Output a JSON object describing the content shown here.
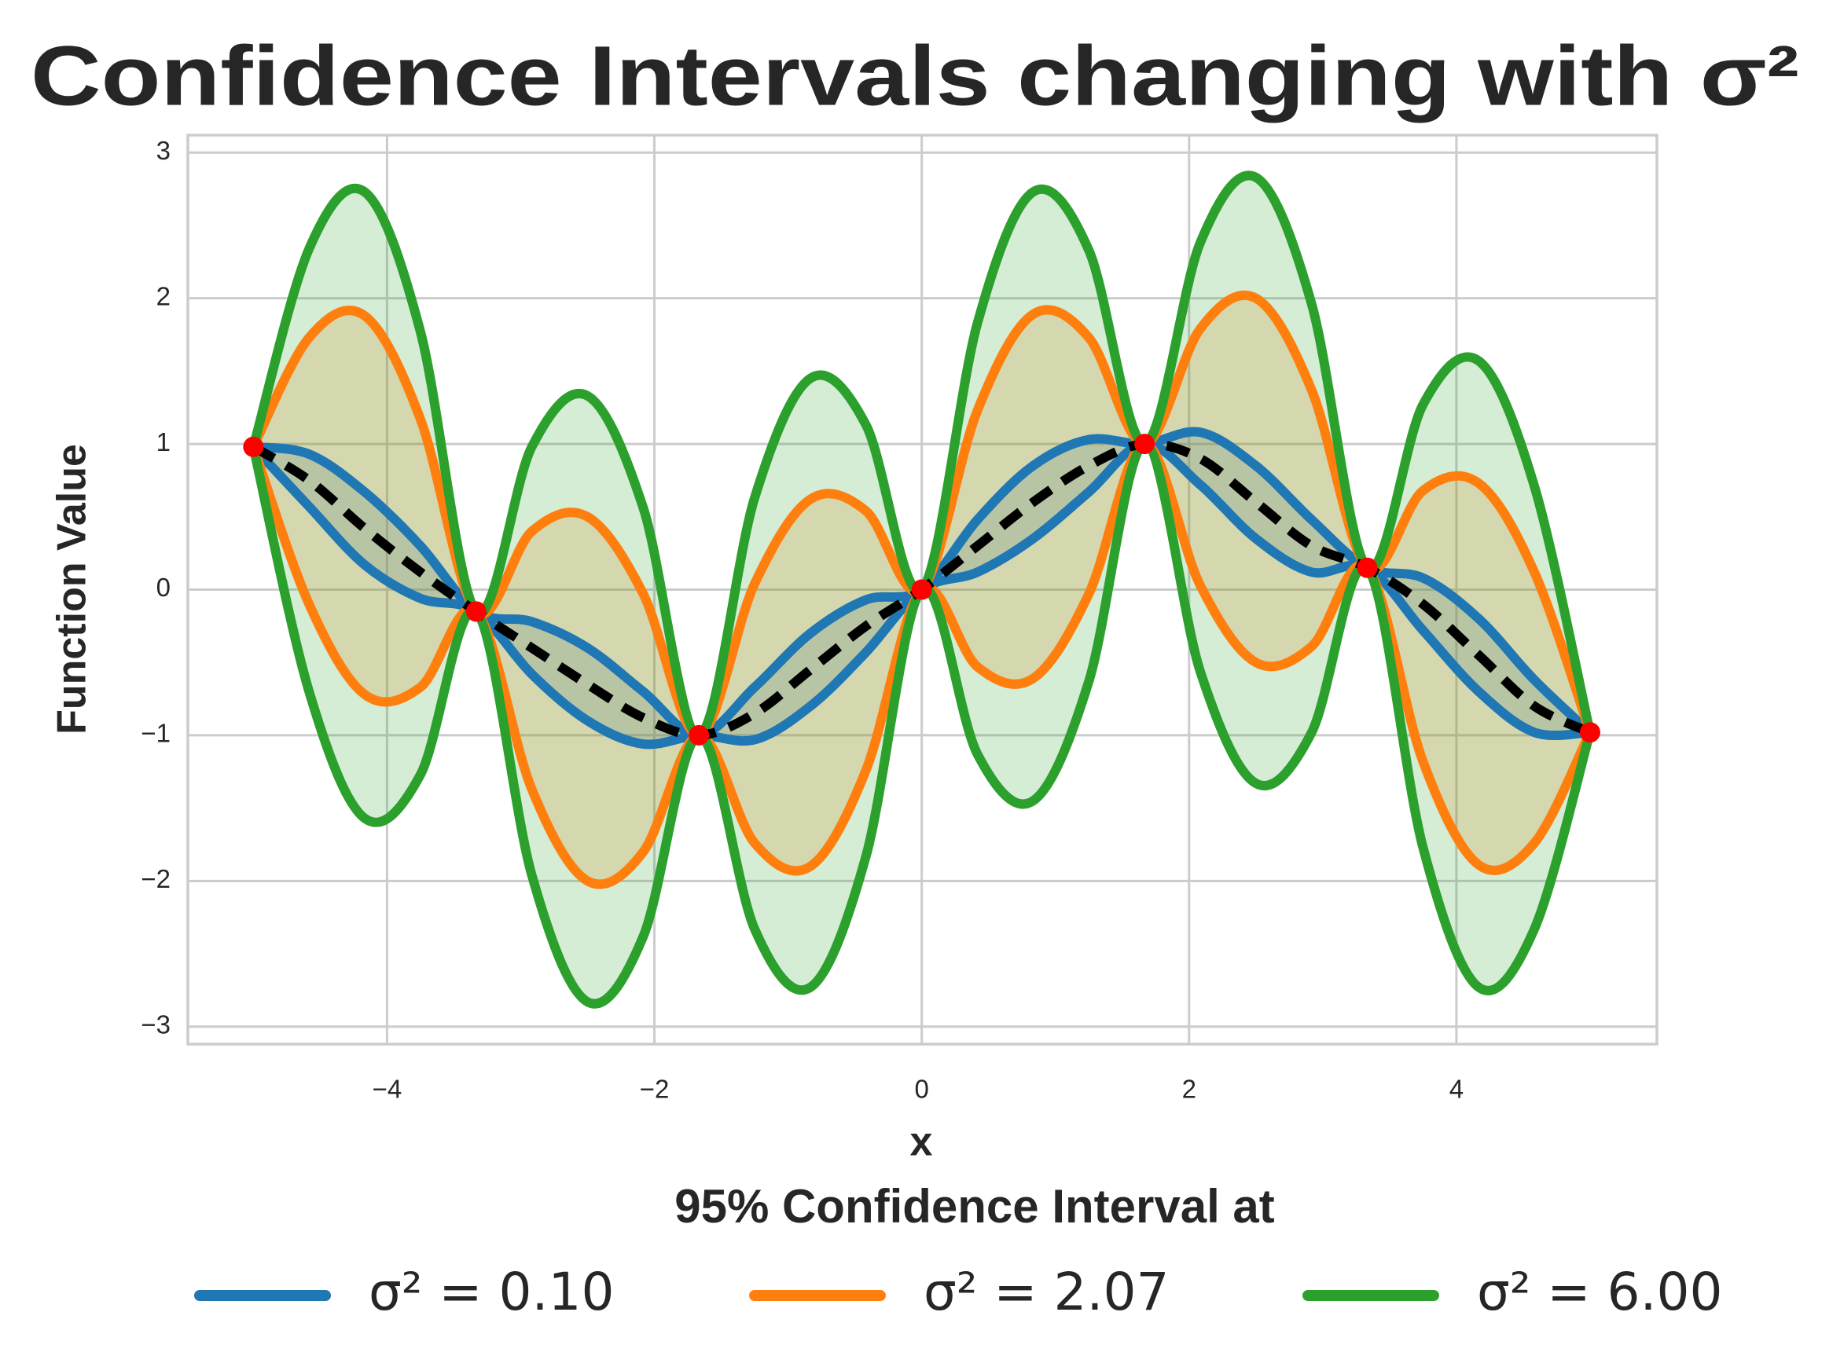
{
  "chart_data": {
    "type": "band-line",
    "title": "Confidence Intervals changing with σ²",
    "xlabel": "x",
    "ylabel": "Function Value",
    "legend_title": "95% Confidence Interval at",
    "grid": true,
    "legend": "bottom",
    "xlim": [
      -5.49,
      5.5
    ],
    "ylim": [
      -3.12,
      3.12
    ],
    "xticks": [
      {
        "value": -4,
        "label": "−4"
      },
      {
        "value": -2,
        "label": "−2"
      },
      0,
      2,
      4
    ],
    "yticks": [
      {
        "value": -3,
        "label": "−3"
      },
      {
        "value": -2,
        "label": "−2"
      },
      {
        "value": -1,
        "label": "−1"
      },
      0,
      1,
      2,
      3
    ],
    "x": [
      -5,
      -4.583,
      -4.167,
      -3.75,
      -3.333,
      -2.917,
      -2.5,
      -2.083,
      -1.667,
      -1.25,
      -0.833,
      -0.417,
      0,
      0.417,
      0.833,
      1.25,
      1.667,
      2.083,
      2.5,
      2.917,
      3.333,
      3.75,
      4.167,
      4.583,
      5
    ],
    "mean": {
      "color": "#000000",
      "values": [
        0.98,
        0.75,
        0.42,
        0.12,
        -0.15,
        -0.4,
        -0.65,
        -0.88,
        -1.0,
        -0.85,
        -0.55,
        -0.25,
        0,
        0.3,
        0.6,
        0.85,
        1.0,
        0.9,
        0.6,
        0.3,
        0.15,
        -0.1,
        -0.45,
        -0.8,
        -0.98
      ]
    },
    "bands": [
      {
        "name": "σ² = 0.10",
        "color": "#1f77b4",
        "upper": [
          0.98,
          0.93,
          0.67,
          0.3,
          -0.15,
          -0.22,
          -0.4,
          -0.7,
          -1.0,
          -0.67,
          -0.3,
          -0.07,
          0,
          0.48,
          0.85,
          1.03,
          1.0,
          1.08,
          0.85,
          0.48,
          0.15,
          0.08,
          -0.2,
          -0.62,
          -0.98
        ],
        "lower": [
          0.98,
          0.57,
          0.17,
          -0.06,
          -0.15,
          -0.58,
          -0.9,
          -1.06,
          -1.0,
          -1.03,
          -0.8,
          -0.43,
          0,
          0.12,
          0.35,
          0.67,
          1.0,
          0.72,
          0.35,
          0.12,
          0.15,
          -0.28,
          -0.7,
          -0.98,
          -0.98
        ]
      },
      {
        "name": "σ² = 2.07",
        "color": "#ff7f0e",
        "upper": [
          0.98,
          1.73,
          1.88,
          1.17,
          -0.15,
          0.4,
          0.5,
          -0.03,
          -1.0,
          0.04,
          0.62,
          0.54,
          0,
          1.23,
          1.89,
          1.73,
          1.0,
          1.79,
          2.0,
          1.37,
          0.15,
          0.68,
          0.73,
          0.12,
          -0.98
        ],
        "lower": [
          0.98,
          -0.1,
          -0.72,
          -0.67,
          -0.15,
          -1.37,
          -2.0,
          -1.8,
          -1.0,
          -1.74,
          -1.9,
          -1.24,
          0,
          -0.53,
          -0.61,
          -0.03,
          1.0,
          0.03,
          -0.5,
          -0.39,
          0.15,
          -1.18,
          -1.89,
          -1.74,
          -0.98
        ]
      },
      {
        "name": "σ² = 6.00",
        "color": "#2ca02c",
        "upper": [
          0.98,
          2.34,
          2.73,
          1.77,
          -0.15,
          0.98,
          1.33,
          0.56,
          -1.0,
          0.63,
          1.45,
          1.13,
          0,
          1.83,
          2.73,
          2.33,
          1.0,
          2.38,
          2.83,
          1.96,
          0.15,
          1.27,
          1.57,
          0.71,
          -0.98
        ],
        "lower": [
          0.98,
          -0.7,
          -1.57,
          -1.27,
          -0.15,
          -1.96,
          -2.83,
          -2.38,
          -1.0,
          -2.33,
          -2.73,
          -1.83,
          0,
          -1.13,
          -1.45,
          -0.63,
          1.0,
          -0.56,
          -1.33,
          -0.98,
          0.15,
          -1.77,
          -2.73,
          -2.33,
          -0.98
        ]
      }
    ],
    "points": {
      "color": "#ff0000",
      "x": [
        -5,
        -3.333,
        -1.667,
        0,
        1.667,
        3.333,
        5
      ],
      "y": [
        0.98,
        -0.15,
        -1.0,
        0,
        1.0,
        0.15,
        -0.98
      ]
    }
  }
}
